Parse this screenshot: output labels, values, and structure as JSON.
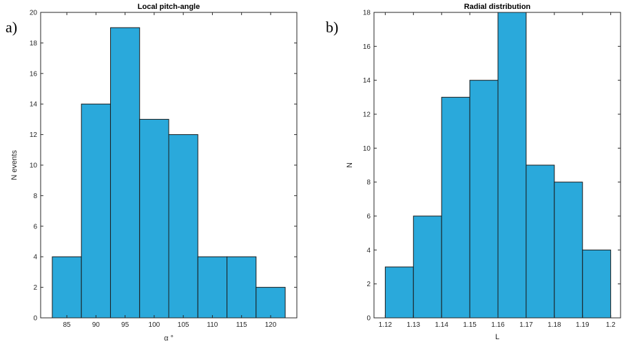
{
  "chart_data": [
    {
      "type": "bar",
      "panel_label": "a)",
      "title": "Local pitch-angle",
      "xlabel": "α °",
      "ylabel": "N events",
      "bin_edges": [
        82.5,
        87.5,
        92.5,
        97.5,
        102.5,
        107.5,
        112.5,
        117.5,
        122.5
      ],
      "values": [
        4,
        14,
        19,
        13,
        12,
        4,
        4,
        2
      ],
      "xlim": [
        80.5,
        124.5
      ],
      "ylim": [
        0,
        20
      ],
      "xticks": [
        85,
        90,
        95,
        100,
        105,
        110,
        115,
        120
      ],
      "xtick_labels": [
        "85",
        "90",
        "95",
        "100",
        "105",
        "110",
        "115",
        "120"
      ],
      "yticks": [
        0,
        2,
        4,
        6,
        8,
        10,
        12,
        14,
        16,
        18,
        20
      ],
      "ytick_labels": [
        "0",
        "2",
        "4",
        "6",
        "8",
        "10",
        "12",
        "14",
        "16",
        "18",
        "20"
      ],
      "bar_color": "#2AA9DB",
      "grid": false
    },
    {
      "type": "bar",
      "panel_label": "b)",
      "title": "Radial distribution",
      "xlabel": "L",
      "ylabel": "N",
      "bin_edges": [
        1.12,
        1.13,
        1.14,
        1.15,
        1.16,
        1.17,
        1.18,
        1.19,
        1.2
      ],
      "values": [
        3,
        6,
        13,
        14,
        18,
        9,
        8,
        4
      ],
      "xlim": [
        1.116,
        1.2035
      ],
      "ylim": [
        0,
        18
      ],
      "xticks": [
        1.12,
        1.13,
        1.14,
        1.15,
        1.16,
        1.17,
        1.18,
        1.19,
        1.2
      ],
      "xtick_labels": [
        "1.12",
        "1.13",
        "1.14",
        "1.15",
        "1.16",
        "1.17",
        "1.18",
        "1.19",
        "1.2"
      ],
      "yticks": [
        0,
        2,
        4,
        6,
        8,
        10,
        12,
        14,
        16,
        18
      ],
      "ytick_labels": [
        "0",
        "2",
        "4",
        "6",
        "8",
        "10",
        "12",
        "14",
        "16",
        "18"
      ],
      "bar_color": "#2AA9DB",
      "grid": false
    }
  ]
}
